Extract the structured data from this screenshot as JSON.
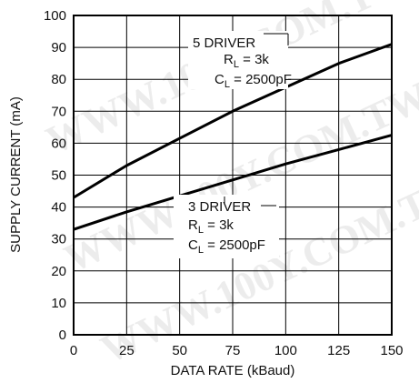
{
  "chart_data": {
    "type": "line",
    "xlabel": "DATA RATE (kBaud)",
    "ylabel": "SUPPLY CURRENT (mA)",
    "xlim": [
      0,
      150
    ],
    "ylim": [
      0,
      100
    ],
    "xticks": [
      0,
      25,
      50,
      75,
      100,
      125,
      150
    ],
    "yticks": [
      0,
      10,
      20,
      30,
      40,
      50,
      60,
      70,
      80,
      90,
      100
    ],
    "grid": true,
    "legend": "none",
    "line_color": "#000000",
    "series": [
      {
        "x": [
          0,
          25,
          50,
          75,
          100,
          125,
          150
        ],
        "y": [
          43,
          53,
          61.5,
          70,
          77.5,
          85,
          91
        ]
      },
      {
        "x": [
          0,
          25,
          50,
          75,
          100,
          125,
          150
        ],
        "y": [
          33,
          38.5,
          43.5,
          48.5,
          53.5,
          58,
          62.5
        ]
      }
    ],
    "annotations": [
      {
        "lines": [
          "5 DRIVER",
          "R_L = 3k",
          "C_L = 2500pF"
        ]
      },
      {
        "lines": [
          "3 DRIVER",
          "R_L = 3k",
          "C_L = 2500pF"
        ]
      }
    ]
  },
  "watermark": "WWW.100Y.COM.TW"
}
